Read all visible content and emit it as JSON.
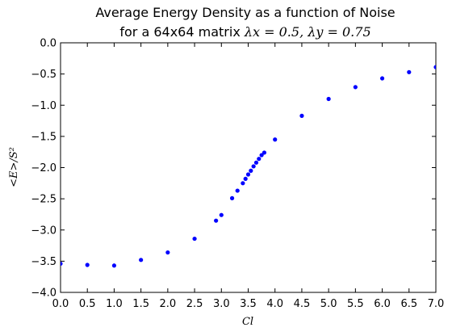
{
  "chart_data": {
    "type": "scatter",
    "title_line1": "Average Energy Density as a function of Noise",
    "title_line2_prefix": "for a 64x64 matrix ",
    "title_line2_math": "λx = 0.5, λy = 0.75",
    "xlabel": "Cl",
    "ylabel": "<E>/S²",
    "xlim": [
      0.0,
      7.0
    ],
    "ylim": [
      -4.0,
      0.0
    ],
    "x_ticks": [
      "0.0",
      "0.5",
      "1.0",
      "1.5",
      "2.0",
      "2.5",
      "3.0",
      "3.5",
      "4.0",
      "4.5",
      "5.0",
      "5.5",
      "6.0",
      "6.5",
      "7.0"
    ],
    "y_ticks": [
      "0.0",
      "−0.5",
      "−1.0",
      "−1.5",
      "−2.0",
      "−2.5",
      "−3.0",
      "−3.5",
      "−4.0"
    ],
    "grid": false,
    "marker_color": "#0000ff",
    "x": [
      0.0,
      0.5,
      1.0,
      1.5,
      2.0,
      2.5,
      2.9,
      3.0,
      3.2,
      3.3,
      3.4,
      3.45,
      3.5,
      3.55,
      3.6,
      3.65,
      3.7,
      3.75,
      3.8,
      4.0,
      4.5,
      5.0,
      5.5,
      6.0,
      6.5,
      7.0
    ],
    "y": [
      -3.54,
      -3.56,
      -3.57,
      -3.48,
      -3.36,
      -3.14,
      -2.85,
      -2.76,
      -2.49,
      -2.37,
      -2.25,
      -2.18,
      -2.11,
      -2.05,
      -1.98,
      -1.92,
      -1.86,
      -1.8,
      -1.76,
      -1.55,
      -1.17,
      -0.9,
      -0.71,
      -0.57,
      -0.47,
      -0.39
    ]
  }
}
